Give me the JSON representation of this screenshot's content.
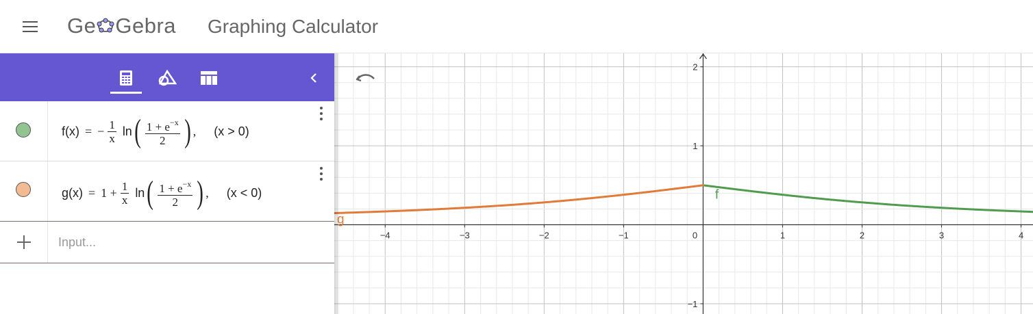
{
  "header": {
    "logo": {
      "part1": "Ge",
      "part2": "Gebra"
    },
    "app_title": "Graphing Calculator"
  },
  "panel": {
    "tabs": [
      {
        "name": "algebra",
        "icon": "calculator-icon"
      },
      {
        "name": "tools",
        "icon": "geometry-tools-icon"
      },
      {
        "name": "table",
        "icon": "table-icon"
      }
    ],
    "collapse_icon": "chevron-left-icon"
  },
  "algebra": {
    "items": [
      {
        "color": "#93c391",
        "label": "f(x)",
        "eq": "=",
        "sign": "−",
        "frac_num": "1",
        "frac_den": "x",
        "ln": "ln",
        "inner_num_pre": "1 + e",
        "inner_num_sup": "−x",
        "inner_den": "2",
        "sep": ",",
        "cond": "(x > 0)"
      },
      {
        "color": "#f3bb93",
        "label": "g(x)",
        "eq": "=",
        "sign": "1 +",
        "frac_num": "1",
        "frac_den": "x",
        "ln": "ln",
        "inner_num_pre": "1 + e",
        "inner_num_sup": "−x",
        "inner_den": "2",
        "sep": ",",
        "cond": "(x < 0)"
      }
    ],
    "input_placeholder": "Input..."
  },
  "graph": {
    "x_range": [
      -4.64,
      4.15
    ],
    "y_range": [
      -1.13,
      2.17
    ],
    "x_ticks": [
      {
        "value": -4,
        "label": "−4"
      },
      {
        "value": -3,
        "label": "−3"
      },
      {
        "value": -2,
        "label": "−2"
      },
      {
        "value": -1,
        "label": "−1"
      },
      {
        "value": 0,
        "label": "0"
      },
      {
        "value": 1,
        "label": "1"
      },
      {
        "value": 2,
        "label": "2"
      },
      {
        "value": 3,
        "label": "3"
      },
      {
        "value": 4,
        "label": "4"
      }
    ],
    "y_ticks": [
      {
        "value": -1,
        "label": "−1"
      },
      {
        "value": 1,
        "label": "1"
      },
      {
        "value": 2,
        "label": "2"
      }
    ],
    "minor_step": 0.2,
    "grid": true,
    "curves": [
      {
        "label": "f",
        "color": "#519b4f",
        "domain": [
          0,
          4.15
        ]
      },
      {
        "label": "g",
        "color": "#e07b39",
        "domain": [
          -4.64,
          0
        ]
      }
    ],
    "undo_icon": "undo-icon"
  }
}
